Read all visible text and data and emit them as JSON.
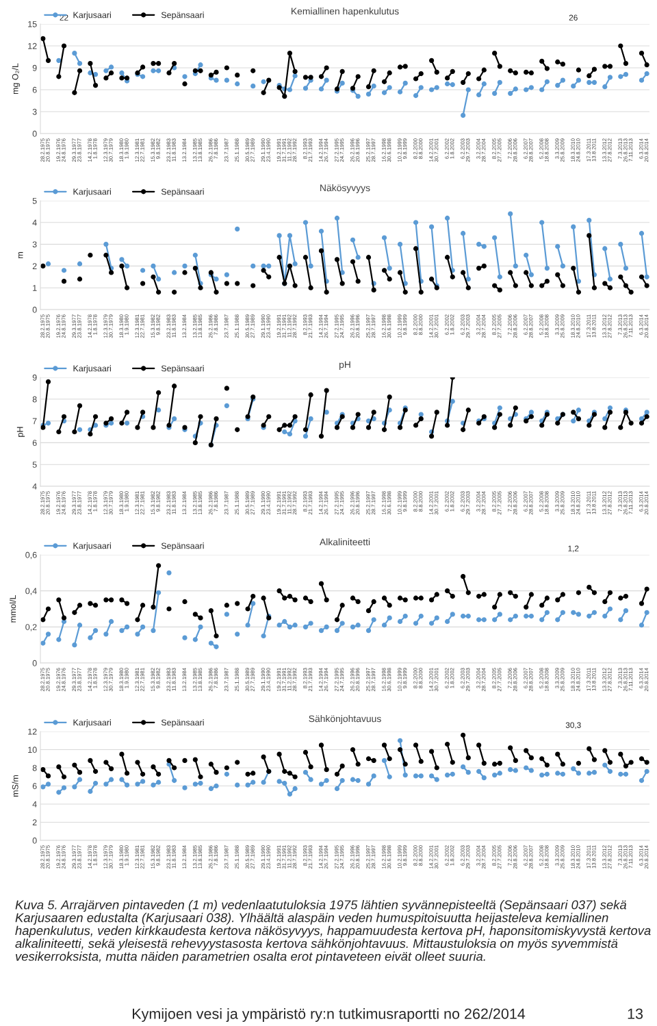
{
  "chart_data": [
    {
      "type": "line",
      "title": "Kemiallinen hapenkulutus",
      "ylabel": "mg O₂/L",
      "legend": "top left",
      "grid": "y",
      "marker": "circle",
      "line_style": "solid",
      "ylim": [
        0,
        15
      ],
      "yticks": [
        0,
        3,
        6,
        9,
        12,
        15
      ],
      "categories": [
        "28.2.1975",
        "20.8.1975",
        null,
        "19.2.1976",
        "24.8.1976",
        null,
        "29.3.1977",
        "23.8.1977",
        null,
        "14.2.1978",
        "1.8.1978",
        null,
        "12.3.1979",
        "30.7.1979",
        null,
        "18.3.1980",
        "1.9.1980",
        null,
        "12.3.1981",
        "22.7.1981",
        null,
        "15.3.1982",
        "9.8.1982",
        null,
        "23.2.1983",
        "11.8.1983",
        null,
        "13.2.1984",
        null,
        "13.2.1985",
        "13.8.1985",
        null,
        "26.2.1986",
        "7.8.1986",
        null,
        "23.7.1987",
        null,
        "25.1.1988",
        null,
        "30.5.1989",
        "27.7.1989",
        null,
        "29.1.1990",
        "23.4.1990",
        null,
        "19.2.1991",
        "31.7.1991",
        "11.2.1992",
        "28.7.1992",
        null,
        "8.2.1993",
        "21.7.1993",
        null,
        "14.2.1994",
        "26.7.1994",
        null,
        "27.2.1995",
        "24.7.1995",
        null,
        "26.2.1996",
        "20.8.1996",
        null,
        "25.2.1997",
        "28.7.1997",
        null,
        "16.2.1998",
        "30.6.1998",
        null,
        "10.2.1999",
        "9.8.1999",
        null,
        "8.2.2000",
        "8.8.2000",
        null,
        "14.2.2001",
        "30.7.2001",
        null,
        "6.2.2002",
        "1.8.2002",
        null,
        "6.2.2003",
        "29.7.2003",
        null,
        "3.2.2004",
        "28.7.2004",
        null,
        "8.2.2005",
        "27.7.2005",
        null,
        "7.2.2006",
        "28.8.2006",
        null,
        "6.2.2007",
        "28.8.2007",
        null,
        "5.2.2008",
        "18.8.2008",
        null,
        "3.3.2009",
        "25.8.2009",
        null,
        "18.3.2010",
        "24.8.2010",
        null,
        "17.3.2011",
        "13.8.2011",
        null,
        "13.3.2012",
        "27.8.2012",
        null,
        "7.3.2013",
        "26.8.2013",
        "7.11.2013",
        null,
        "6.3.2014",
        "20.8.2014"
      ],
      "series": [
        {
          "name": "Karjusaari",
          "color": "#5b9bd5",
          "values": [
            null,
            null,
            null,
            10.0,
            null,
            null,
            11.0,
            9.6,
            null,
            8.3,
            8.1,
            null,
            8.6,
            9.1,
            null,
            8.3,
            7.2,
            null,
            8.1,
            7.8,
            null,
            8.6,
            8.6,
            null,
            null,
            9.0,
            null,
            7.8,
            null,
            8.2,
            9.4,
            null,
            7.6,
            7.3,
            null,
            7.3,
            null,
            6.8,
            null,
            null,
            6.5,
            null,
            7.1,
            null,
            null,
            6.6,
            6.1,
            6.0,
            7.9,
            null,
            6.2,
            7.3,
            null,
            6.1,
            7.3,
            null,
            5.8,
            6.9,
            null,
            5.9,
            5.1,
            null,
            5.4,
            6.5,
            null,
            5.6,
            6.3,
            null,
            5.7,
            6.9,
            null,
            5.2,
            6.3,
            null,
            6.0,
            6.3,
            null,
            6.8,
            6.7,
            null,
            2.5,
            6.0,
            null,
            5.3,
            6.8,
            null,
            5.5,
            7.0,
            null,
            5.5,
            6.1,
            null,
            6.0,
            6.3,
            null,
            6.0,
            7.1,
            null,
            6.6,
            7.3,
            null,
            6.5,
            7.3,
            null,
            7.0,
            7.0,
            null,
            6.4,
            7.7,
            null,
            7.8,
            8.1,
            null,
            null,
            7.3,
            8.2
          ]
        },
        {
          "name": "Sepänsaari",
          "color": "#000000",
          "values": [
            13.0,
            10.0,
            null,
            7.8,
            12.0,
            null,
            5.6,
            8.6,
            null,
            9.6,
            6.6,
            null,
            7.6,
            8.3,
            null,
            7.6,
            7.6,
            null,
            8.3,
            9.1,
            null,
            9.6,
            9.6,
            null,
            8.3,
            9.6,
            null,
            6.8,
            null,
            8.6,
            8.6,
            null,
            8.0,
            8.4,
            null,
            9.0,
            null,
            8.0,
            null,
            null,
            8.6,
            null,
            5.6,
            7.3,
            null,
            6.3,
            5.1,
            11.0,
            8.5,
            null,
            7.7,
            7.7,
            null,
            7.8,
            9.0,
            null,
            6.1,
            8.5,
            null,
            6.2,
            7.8,
            null,
            6.4,
            8.6,
            null,
            7.1,
            8.3,
            null,
            9.1,
            9.2,
            null,
            7.5,
            8.2,
            null,
            10.0,
            8.4,
            null,
            7.6,
            8.5,
            null,
            7.0,
            8.2,
            null,
            7.5,
            8.7,
            null,
            11.0,
            9.2,
            null,
            8.6,
            8.3,
            null,
            8.4,
            8.3,
            null,
            9.9,
            8.9,
            null,
            9.8,
            9.5,
            null,
            null,
            8.7,
            null,
            7.9,
            8.8,
            null,
            9.2,
            9.2,
            null,
            12.0,
            9.6,
            null,
            null,
            11.0,
            9.4
          ]
        }
      ],
      "annotations": [
        "22",
        "26"
      ]
    },
    {
      "type": "line",
      "title": "Näkösyvyys",
      "ylabel": "m",
      "legend": "top left",
      "grid": "y",
      "marker": "circle",
      "line_style": "solid",
      "ylim": [
        0,
        5
      ],
      "yticks": [
        0,
        1,
        2,
        3,
        4,
        5
      ],
      "categories": [
        "28.2.1975",
        "20.8.1975",
        null,
        "19.2.1976",
        "24.8.1976",
        null,
        "29.3.1977",
        "23.8.1977",
        null,
        "14.2.1978",
        "1.8.1978",
        null,
        "12.3.1979",
        "30.7.1979",
        null,
        "18.3.1980",
        "1.9.1980",
        null,
        "12.3.1981",
        "22.7.1981",
        null,
        "15.3.1982",
        "9.8.1982",
        null,
        "23.2.1983",
        "11.8.1983",
        null,
        "13.2.1984",
        null,
        "13.2.1985",
        "13.8.1985",
        null,
        "26.2.1986",
        "7.8.1986",
        null,
        "23.7.1987",
        null,
        "25.1.1988",
        null,
        "30.5.1989",
        "27.7.1989",
        null,
        "29.1.1990",
        "23.4.1990",
        null,
        "19.2.1991",
        "31.7.1991",
        "11.2.1992",
        "28.7.1992",
        null,
        "8.2.1993",
        "21.7.1993",
        null,
        "14.2.1994",
        "26.7.1994",
        null,
        "27.2.1995",
        "24.7.1995",
        null,
        "26.2.1996",
        "20.8.1996",
        null,
        "25.2.1997",
        "28.7.1997",
        null,
        "16.2.1998",
        "30.6.1998",
        null,
        "10.2.1999",
        "9.8.1999",
        null,
        "8.2.2000",
        "8.8.2000",
        null,
        "14.2.2001",
        "30.7.2001",
        null,
        "6.2.2002",
        "1.8.2002",
        null,
        "6.2.2003",
        "29.7.2003",
        null,
        "3.2.2004",
        "28.7.2004",
        null,
        "8.2.2005",
        "27.7.2005",
        null,
        "7.2.2006",
        "28.8.2006",
        null,
        "6.2.2007",
        "28.8.2007",
        null,
        "5.2.2008",
        "18.8.2008",
        null,
        "3.3.2009",
        "25.8.2009",
        null,
        "18.3.2010",
        "24.8.2010",
        null,
        "17.3.2011",
        "13.8.2011",
        null,
        "13.3.2012",
        "27.8.2012",
        null,
        "7.3.2013",
        "26.8.2013",
        "7.11.2013",
        null,
        "6.3.2014",
        "20.8.2014"
      ],
      "series": [
        {
          "name": "Karjusaari",
          "color": "#5b9bd5",
          "values": [
            null,
            2.1,
            null,
            null,
            1.8,
            null,
            null,
            2.1,
            null,
            null,
            null,
            null,
            3.0,
            1.9,
            null,
            2.3,
            2.0,
            null,
            null,
            1.8,
            null,
            2.0,
            1.4,
            null,
            null,
            1.7,
            null,
            2.0,
            null,
            2.5,
            1.2,
            null,
            1.6,
            1.4,
            null,
            1.6,
            null,
            3.7,
            null,
            null,
            2.0,
            null,
            2.0,
            2.0,
            null,
            3.4,
            1.2,
            3.4,
            2.1,
            null,
            4.0,
            2.0,
            null,
            3.6,
            1.3,
            null,
            4.2,
            1.7,
            null,
            3.2,
            2.4,
            null,
            null,
            1.2,
            null,
            3.3,
            1.9,
            null,
            3.0,
            1.2,
            null,
            4.0,
            1.3,
            null,
            3.8,
            1.1,
            null,
            4.2,
            1.8,
            null,
            3.5,
            1.4,
            null,
            3.0,
            2.9,
            null,
            3.3,
            1.5,
            null,
            4.4,
            2.0,
            null,
            2.5,
            1.6,
            null,
            4.0,
            1.9,
            null,
            2.9,
            2.0,
            null,
            3.8,
            1.3,
            null,
            4.1,
            1.6,
            null,
            2.8,
            1.4,
            null,
            3.0,
            1.9,
            null,
            null,
            3.5,
            1.5
          ]
        },
        {
          "name": "Sepänsaari",
          "color": "#000000",
          "values": [
            2.0,
            null,
            null,
            null,
            1.3,
            null,
            null,
            1.4,
            null,
            2.5,
            null,
            null,
            2.5,
            1.7,
            null,
            2.0,
            1.0,
            null,
            null,
            1.2,
            null,
            1.5,
            0.8,
            null,
            null,
            0.8,
            null,
            1.7,
            null,
            1.9,
            1.0,
            null,
            1.7,
            0.8,
            null,
            1.2,
            null,
            1.2,
            null,
            null,
            1.1,
            null,
            1.8,
            1.5,
            null,
            2.4,
            1.2,
            2.0,
            1.1,
            null,
            2.4,
            1.0,
            null,
            2.7,
            0.8,
            null,
            2.3,
            1.2,
            null,
            2.2,
            1.3,
            null,
            2.4,
            0.9,
            null,
            1.8,
            1.4,
            null,
            1.7,
            0.8,
            null,
            2.8,
            0.8,
            null,
            1.4,
            1.0,
            null,
            2.4,
            1.5,
            null,
            1.7,
            1.0,
            null,
            1.9,
            2.0,
            null,
            1.1,
            0.9,
            null,
            1.7,
            1.1,
            null,
            1.7,
            1.1,
            null,
            1.1,
            1.3,
            null,
            1.6,
            1.1,
            null,
            1.9,
            0.8,
            null,
            3.4,
            1.0,
            null,
            1.2,
            1.0,
            null,
            1.5,
            1.1,
            0.8,
            null,
            1.5,
            1.1
          ]
        }
      ]
    },
    {
      "type": "line",
      "title": "pH",
      "ylabel": "pH",
      "legend": "top left",
      "grid": "y",
      "marker": "circle",
      "line_style": "solid",
      "ylim": [
        4,
        9
      ],
      "yticks": [
        4,
        5,
        6,
        7,
        8,
        9
      ],
      "categories": [
        "28.2.1975",
        "20.8.1975",
        null,
        "19.2.1976",
        "24.8.1976",
        null,
        "29.3.1977",
        "23.8.1977",
        null,
        "14.2.1978",
        "1.8.1978",
        null,
        "12.3.1979",
        "30.7.1979",
        null,
        "18.3.1980",
        "1.9.1980",
        null,
        "12.3.1981",
        "22.7.1981",
        null,
        "15.3.1982",
        "9.8.1982",
        null,
        "23.2.1983",
        "11.8.1983",
        null,
        "13.2.1984",
        null,
        "13.2.1985",
        "13.8.1985",
        null,
        "26.2.1986",
        "7.8.1986",
        null,
        "23.7.1987",
        null,
        "25.1.1988",
        null,
        "30.5.1989",
        "27.7.1989",
        null,
        "29.1.1990",
        "23.4.1990",
        null,
        "19.2.1991",
        "31.7.1991",
        "11.2.1992",
        "28.7.1992",
        null,
        "8.2.1993",
        "21.7.1993",
        null,
        "14.2.1994",
        "26.7.1994",
        null,
        "27.2.1995",
        "24.7.1995",
        null,
        "26.2.1996",
        "20.8.1996",
        null,
        "25.2.1997",
        "28.7.1997",
        null,
        "16.2.1998",
        "30.6.1998",
        null,
        "10.2.1999",
        "9.8.1999",
        null,
        "8.2.2000",
        "8.8.2000",
        null,
        "14.2.2001",
        "30.7.2001",
        null,
        "6.2.2002",
        "1.8.2002",
        null,
        "6.2.2003",
        "29.7.2003",
        null,
        "3.2.2004",
        "28.7.2004",
        null,
        "8.2.2005",
        "27.7.2005",
        null,
        "7.2.2006",
        "28.8.2006",
        null,
        "6.2.2007",
        "28.8.2007",
        null,
        "5.2.2008",
        "18.8.2008",
        null,
        "3.3.2009",
        "25.8.2009",
        null,
        "18.3.2010",
        "24.8.2010",
        null,
        "17.3.2011",
        "13.8.2011",
        null,
        "13.3.2012",
        "27.8.2012",
        null,
        "7.3.2013",
        "26.8.2013",
        "7.11.2013",
        null,
        "6.3.2014",
        "20.8.2014"
      ],
      "series": [
        {
          "name": "Karjusaari",
          "color": "#5b9bd5",
          "values": [
            6.8,
            6.9,
            null,
            null,
            7.0,
            null,
            null,
            6.6,
            null,
            6.6,
            6.8,
            null,
            6.8,
            6.9,
            null,
            null,
            6.9,
            null,
            null,
            7.2,
            null,
            null,
            7.5,
            null,
            6.7,
            7.1,
            null,
            6.6,
            null,
            6.3,
            6.9,
            null,
            5.9,
            6.8,
            null,
            7.7,
            null,
            null,
            null,
            7.1,
            8.0,
            null,
            6.7,
            null,
            null,
            null,
            6.5,
            6.4,
            7.0,
            null,
            6.3,
            7.1,
            null,
            null,
            7.4,
            null,
            6.9,
            7.3,
            null,
            6.9,
            7.1,
            null,
            7.0,
            7.1,
            null,
            6.9,
            7.5,
            null,
            6.9,
            7.6,
            null,
            null,
            7.3,
            null,
            6.5,
            null,
            null,
            7.0,
            7.9,
            null,
            6.9,
            null,
            null,
            7.0,
            7.1,
            null,
            6.9,
            7.6,
            null,
            7.1,
            7.3,
            null,
            7.1,
            7.4,
            null,
            7.0,
            7.4,
            null,
            7.1,
            7.3,
            null,
            7.0,
            7.5,
            null,
            7.0,
            7.4,
            null,
            7.1,
            7.6,
            null,
            null,
            7.5,
            null,
            null,
            7.1,
            7.4
          ]
        },
        {
          "name": "Sepänsaari",
          "color": "#000000",
          "values": [
            6.7,
            8.8,
            null,
            6.5,
            7.2,
            null,
            6.5,
            7.7,
            null,
            6.4,
            7.2,
            null,
            6.9,
            7.1,
            null,
            6.9,
            7.4,
            null,
            6.7,
            7.4,
            null,
            6.7,
            8.3,
            null,
            6.8,
            8.6,
            null,
            6.7,
            null,
            6.0,
            7.2,
            null,
            5.9,
            7.1,
            null,
            8.5,
            null,
            6.6,
            null,
            7.2,
            8.1,
            null,
            6.8,
            7.2,
            null,
            6.6,
            6.8,
            6.8,
            7.2,
            null,
            6.6,
            8.2,
            null,
            6.3,
            8.4,
            null,
            6.7,
            7.2,
            null,
            6.7,
            7.3,
            null,
            6.7,
            7.4,
            null,
            6.6,
            8.1,
            null,
            6.7,
            7.5,
            null,
            6.8,
            7.1,
            null,
            6.3,
            7.4,
            null,
            6.8,
            9.0,
            null,
            6.6,
            7.5,
            null,
            6.9,
            7.2,
            null,
            6.7,
            7.3,
            null,
            6.8,
            7.6,
            null,
            7.0,
            7.2,
            null,
            6.8,
            7.3,
            null,
            6.9,
            7.3,
            null,
            7.4,
            7.1,
            null,
            6.8,
            7.3,
            null,
            6.7,
            7.4,
            null,
            6.7,
            7.4,
            6.9,
            null,
            6.9,
            7.2
          ]
        }
      ]
    },
    {
      "type": "line",
      "title": "Alkaliniteetti",
      "ylabel": "mmol/L",
      "legend": "top left",
      "grid": "y",
      "marker": "circle",
      "line_style": "solid",
      "ylim": [
        0,
        0.6
      ],
      "yticks": [
        0,
        {
          "value": 0.2,
          "label": "0,2"
        },
        {
          "value": 0.4,
          "label": "0,4"
        },
        {
          "value": 0.6,
          "label": "0,6"
        }
      ],
      "categories": [
        "28.2.1975",
        "20.8.1975",
        null,
        "19.2.1976",
        "24.8.1976",
        null,
        "29.3.1977",
        "23.8.1977",
        null,
        "14.2.1978",
        "1.8.1978",
        null,
        "12.3.1979",
        "30.7.1979",
        null,
        "18.3.1980",
        "1.9.1980",
        null,
        "12.3.1981",
        "22.7.1981",
        null,
        "15.3.1982",
        "9.8.1982",
        null,
        "23.2.1983",
        "11.8.1983",
        null,
        "13.2.1984",
        null,
        "13.2.1985",
        "13.8.1985",
        null,
        "26.2.1986",
        "7.8.1986",
        null,
        "23.7.1987",
        null,
        "25.1.1988",
        null,
        "30.5.1989",
        "27.7.1989",
        null,
        "29.1.1990",
        "23.4.1990",
        null,
        "19.2.1991",
        "31.7.1991",
        "11.2.1992",
        "28.7.1992",
        null,
        "8.2.1993",
        "21.7.1993",
        null,
        "14.2.1994",
        "26.7.1994",
        null,
        "27.2.1995",
        "24.7.1995",
        null,
        "26.2.1996",
        "20.8.1996",
        null,
        "25.2.1997",
        "28.7.1997",
        null,
        "16.2.1998",
        "30.6.1998",
        null,
        "10.2.1999",
        "9.8.1999",
        null,
        "8.2.2000",
        "8.8.2000",
        null,
        "14.2.2001",
        "30.7.2001",
        null,
        "6.2.2002",
        "1.8.2002",
        null,
        "6.2.2003",
        "29.7.2003",
        null,
        "3.2.2004",
        "28.7.2004",
        null,
        "8.2.2005",
        "27.7.2005",
        null,
        "7.2.2006",
        "28.8.2006",
        null,
        "6.2.2007",
        "28.8.2007",
        null,
        "5.2.2008",
        "18.8.2008",
        null,
        "3.3.2009",
        "25.8.2009",
        null,
        "18.3.2010",
        "24.8.2010",
        null,
        "17.3.2011",
        "13.8.2011",
        null,
        "13.3.2012",
        "27.8.2012",
        null,
        "7.3.2013",
        "26.8.2013",
        "7.11.2013",
        null,
        "6.3.2014",
        "20.8.2014"
      ],
      "series": [
        {
          "name": "Karjusaari",
          "color": "#5b9bd5",
          "values": [
            0.11,
            0.16,
            null,
            0.13,
            0.23,
            null,
            0.1,
            0.21,
            null,
            0.14,
            0.18,
            null,
            0.16,
            0.23,
            null,
            0.18,
            0.2,
            null,
            0.16,
            0.2,
            null,
            0.18,
            0.39,
            null,
            0.5,
            null,
            null,
            0.14,
            null,
            0.13,
            0.2,
            null,
            0.11,
            0.09,
            null,
            0.27,
            null,
            0.16,
            null,
            0.21,
            0.33,
            null,
            0.15,
            0.26,
            null,
            0.21,
            0.23,
            0.2,
            0.21,
            null,
            0.2,
            0.22,
            null,
            0.18,
            0.2,
            null,
            0.18,
            0.22,
            null,
            0.2,
            0.21,
            null,
            0.18,
            0.24,
            null,
            0.21,
            0.25,
            null,
            0.23,
            0.26,
            null,
            0.22,
            0.26,
            null,
            0.22,
            0.25,
            null,
            0.23,
            0.27,
            null,
            0.26,
            0.26,
            null,
            0.24,
            0.24,
            null,
            0.24,
            0.27,
            null,
            0.24,
            0.26,
            null,
            0.26,
            0.26,
            null,
            0.24,
            0.28,
            null,
            0.24,
            0.28,
            null,
            0.28,
            0.27,
            null,
            0.26,
            0.28,
            null,
            0.26,
            0.3,
            null,
            0.24,
            0.29,
            null,
            null,
            0.21,
            0.28
          ]
        },
        {
          "name": "Sepänsaari",
          "color": "#000000",
          "values": [
            0.24,
            0.3,
            null,
            0.35,
            0.25,
            null,
            0.28,
            0.32,
            null,
            0.33,
            0.32,
            null,
            0.35,
            0.35,
            null,
            0.35,
            0.33,
            null,
            0.24,
            0.32,
            null,
            0.31,
            0.54,
            null,
            0.3,
            null,
            null,
            0.34,
            null,
            0.27,
            0.25,
            null,
            0.29,
            0.15,
            null,
            0.32,
            null,
            0.33,
            null,
            0.3,
            0.37,
            null,
            0.36,
            0.25,
            null,
            0.4,
            0.36,
            0.37,
            0.35,
            null,
            0.36,
            0.34,
            null,
            0.44,
            0.35,
            null,
            0.24,
            0.32,
            null,
            0.36,
            0.34,
            null,
            0.29,
            0.34,
            null,
            0.36,
            0.32,
            null,
            0.36,
            0.35,
            null,
            0.36,
            0.36,
            null,
            0.35,
            0.38,
            null,
            0.4,
            0.37,
            null,
            0.48,
            0.39,
            null,
            0.37,
            0.38,
            null,
            0.31,
            0.38,
            null,
            0.39,
            0.37,
            null,
            0.31,
            0.38,
            null,
            0.32,
            0.36,
            null,
            0.35,
            0.38,
            null,
            null,
            0.39,
            null,
            0.42,
            0.39,
            null,
            0.34,
            0.39,
            null,
            0.36,
            0.37,
            null,
            null,
            0.33,
            0.41
          ]
        }
      ],
      "annotations": [
        "1,2"
      ]
    },
    {
      "type": "line",
      "title": "Sähkönjohtavuus",
      "ylabel": "mS/m",
      "legend": "top left",
      "grid": "y",
      "marker": "circle",
      "line_style": "solid",
      "ylim": [
        0,
        12
      ],
      "yticks": [
        0,
        2,
        4,
        6,
        8,
        10,
        12
      ],
      "categories": [
        "28.2.1975",
        "20.8.1975",
        null,
        "19.2.1976",
        "24.8.1976",
        null,
        "29.3.1977",
        "23.8.1977",
        null,
        "14.2.1978",
        "1.8.1978",
        null,
        "12.3.1979",
        "30.7.1979",
        null,
        "18.3.1980",
        "1.9.1980",
        null,
        "12.3.1981",
        "22.7.1981",
        null,
        "15.3.1982",
        "9.8.1982",
        null,
        "23.2.1983",
        "11.8.1983",
        null,
        "13.2.1984",
        null,
        "13.2.1985",
        "13.8.1985",
        null,
        "26.2.1986",
        "7.8.1986",
        null,
        "23.7.1987",
        null,
        "25.1.1988",
        null,
        "30.5.1989",
        "27.7.1989",
        null,
        "29.1.1990",
        "23.4.1990",
        null,
        "19.2.1991",
        "31.7.1991",
        "11.2.1992",
        "28.7.1992",
        null,
        "8.2.1993",
        "21.7.1993",
        null,
        "14.2.1994",
        "26.7.1994",
        null,
        "27.2.1995",
        "24.7.1995",
        null,
        "26.2.1996",
        "20.8.1996",
        null,
        "25.2.1997",
        "28.7.1997",
        null,
        "16.2.1998",
        "30.6.1998",
        null,
        "10.2.1999",
        "9.8.1999",
        null,
        "8.2.2000",
        "8.8.2000",
        null,
        "14.2.2001",
        "30.7.2001",
        null,
        "6.2.2002",
        "1.8.2002",
        null,
        "6.2.2003",
        "29.7.2003",
        null,
        "3.2.2004",
        "28.7.2004",
        null,
        "8.2.2005",
        "27.7.2005",
        null,
        "7.2.2006",
        "28.8.2006",
        null,
        "6.2.2007",
        "28.8.2007",
        null,
        "5.2.2008",
        "18.8.2008",
        null,
        "3.3.2009",
        "25.8.2009",
        null,
        "18.3.2010",
        "24.8.2010",
        null,
        "17.3.2011",
        "13.8.2011",
        null,
        "13.3.2012",
        "27.8.2012",
        null,
        "7.3.2013",
        "26.8.2013",
        "7.11.2013",
        null,
        "6.3.2014",
        "20.8.2014"
      ],
      "series": [
        {
          "name": "Karjusaari",
          "color": "#5b9bd5",
          "values": [
            5.9,
            6.2,
            null,
            5.3,
            5.8,
            null,
            5.9,
            6.7,
            null,
            5.4,
            6.3,
            null,
            6.2,
            6.7,
            null,
            6.7,
            6.1,
            null,
            6.2,
            6.5,
            null,
            6.1,
            6.4,
            null,
            8.4,
            6.6,
            null,
            5.8,
            null,
            6.2,
            6.3,
            null,
            5.7,
            6.0,
            null,
            7.3,
            null,
            6.1,
            null,
            6.1,
            6.4,
            null,
            6.4,
            7.6,
            null,
            6.5,
            6.3,
            5.1,
            5.7,
            null,
            7.5,
            6.7,
            null,
            6.2,
            6.6,
            null,
            5.7,
            6.6,
            null,
            6.7,
            6.6,
            null,
            6.2,
            7.1,
            null,
            8.8,
            7.0,
            null,
            11.0,
            7.2,
            null,
            7.1,
            7.1,
            null,
            7.1,
            6.7,
            null,
            7.2,
            7.3,
            null,
            8.1,
            7.5,
            null,
            7.6,
            6.9,
            null,
            7.2,
            7.4,
            null,
            7.8,
            7.7,
            null,
            8.0,
            7.7,
            null,
            7.2,
            7.3,
            null,
            7.4,
            7.3,
            null,
            7.9,
            7.4,
            null,
            7.4,
            7.5,
            null,
            8.3,
            7.6,
            null,
            7.3,
            7.3,
            null,
            null,
            6.6,
            7.6
          ]
        },
        {
          "name": "Sepänsaari",
          "color": "#000000",
          "values": [
            7.8,
            7.1,
            null,
            8.1,
            7.0,
            null,
            8.3,
            7.5,
            null,
            8.8,
            7.6,
            null,
            8.6,
            7.9,
            null,
            9.5,
            7.4,
            null,
            8.6,
            7.3,
            null,
            8.1,
            7.3,
            null,
            8.8,
            8.0,
            null,
            8.8,
            null,
            8.9,
            7.0,
            null,
            8.4,
            7.5,
            null,
            8.0,
            null,
            8.6,
            null,
            7.3,
            7.4,
            null,
            9.2,
            7.6,
            null,
            9.5,
            7.6,
            7.4,
            7.0,
            null,
            9.7,
            8.1,
            null,
            10.5,
            7.8,
            null,
            7.3,
            8.2,
            null,
            10.0,
            8.4,
            null,
            9.0,
            8.8,
            null,
            10.5,
            9.0,
            null,
            10.0,
            8.4,
            null,
            10.5,
            8.7,
            null,
            9.8,
            8.0,
            null,
            10.6,
            8.6,
            null,
            11.6,
            9.1,
            null,
            10.5,
            8.5,
            null,
            8.4,
            8.5,
            null,
            10.2,
            8.8,
            null,
            9.9,
            9.1,
            null,
            9.0,
            8.3,
            null,
            9.5,
            8.4,
            null,
            null,
            8.5,
            null,
            10.1,
            8.9,
            null,
            9.9,
            8.6,
            null,
            9.5,
            8.2,
            8.6,
            null,
            9.0,
            8.6
          ]
        }
      ],
      "annotations": [
        "30,3",
        "Kuva 5. Arrajärven pintaveden (1 m) vedenlaatutuloksia 1975 lähtien syvännepisteeltä (Sepänsaari 037) sekä Karjusaaren edustalta (Karjusaari 038). Ylhäältä alaspäin veden humuspitoisuutta heijasteleva kemiallinen hapenkulutus, veden kirkkaudesta kertova näkösyvyys, happamuudesta kertova pH, haponsitomiskyvystä kertova alkaliniteetti, sekä yleisestä rehevyystasosta kertova sähkönjohtavuus. Mittaustuloksia on myös syvemmistä vesikerroksista, mutta näiden parametrien osalta erot pintaveteen eivät olleet suuria.",
        "Kymijoen vesi ja ympäristö ry:n tutkimusraportti no 262/2014",
        "13"
      ]
    }
  ]
}
